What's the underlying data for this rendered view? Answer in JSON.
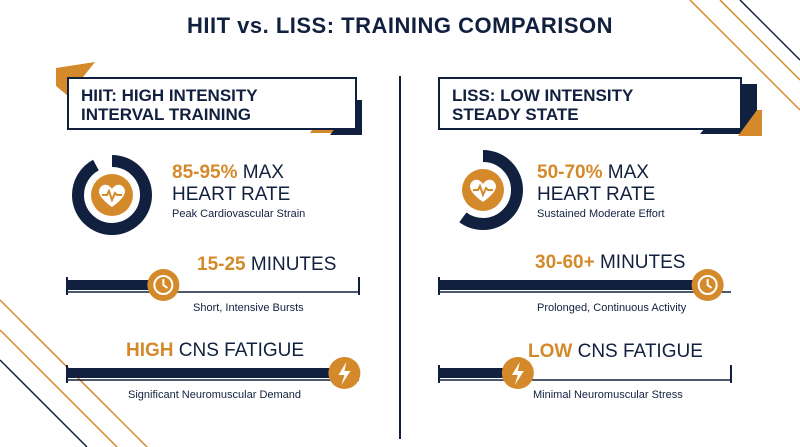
{
  "title": "HIIT vs. LISS: TRAINING COMPARISON",
  "colors": {
    "navy": "#12203f",
    "orange": "#d48a2a",
    "background": "#ffffff"
  },
  "hiit": {
    "header_line1": "HIIT: HIGH INTENSITY",
    "header_line2": "INTERVAL TRAINING",
    "heart_rate": {
      "highlight": "85-95%",
      "rest": " MAX",
      "line2": "HEART RATE",
      "caption": "Peak Cardiovascular Strain",
      "ring_fraction": 0.92
    },
    "duration": {
      "highlight": "15-25",
      "rest": " MINUTES",
      "caption": "Short, Intensive Bursts",
      "bar_fraction": 0.33
    },
    "fatigue": {
      "highlight": "HIGH",
      "rest": " CNS FATIGUE",
      "caption": "Significant Neuromuscular Demand",
      "bar_fraction": 0.95
    }
  },
  "liss": {
    "header_line1": "LISS: LOW INTENSITY",
    "header_line2": "STEADY STATE",
    "heart_rate": {
      "highlight": "50-70%",
      "rest": " MAX",
      "line2": "HEART RATE",
      "caption": "Sustained Moderate Effort",
      "ring_fraction": 0.6
    },
    "duration": {
      "highlight": "30-60+",
      "rest": " MINUTES",
      "caption": "Prolonged, Continuous Activity",
      "bar_fraction": 0.92
    },
    "fatigue": {
      "highlight": "LOW",
      "rest": " CNS FATIGUE",
      "caption": "Minimal Neuromuscular Stress",
      "bar_fraction": 0.27
    }
  },
  "icons": {
    "heart": "heart-pulse-icon",
    "clock": "clock-icon",
    "bolt": "lightning-bolt-icon"
  }
}
